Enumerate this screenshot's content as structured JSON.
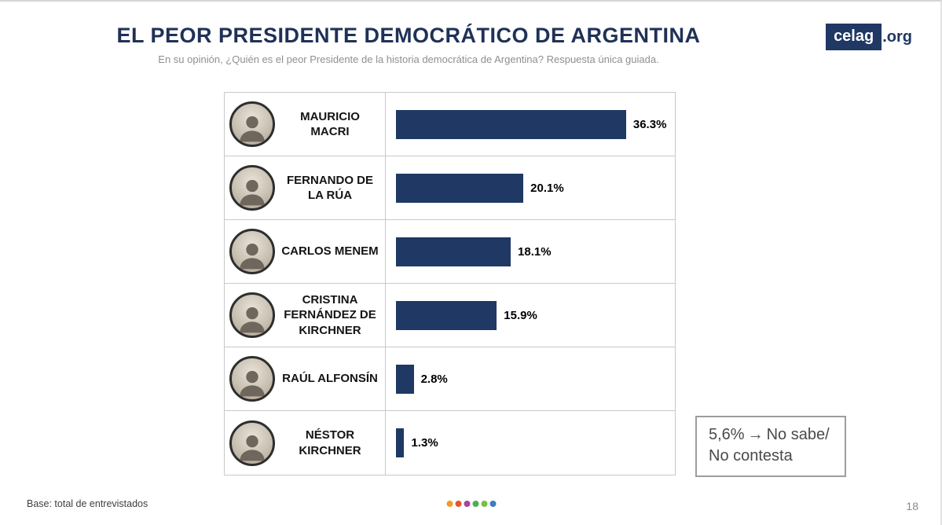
{
  "header": {
    "title": "EL PEOR PRESIDENTE DEMOCRÁTICO DE ARGENTINA",
    "subtitle": "En su opinión, ¿Quién es el peor Presidente de la historia democrática de Argentina? Respuesta única guiada.",
    "logo_brand": "celag",
    "logo_suffix": ".org"
  },
  "chart_data": {
    "type": "bar",
    "orientation": "horizontal",
    "title": "EL PEOR PRESIDENTE DEMOCRÁTICO DE ARGENTINA",
    "subtitle": "En su opinión, ¿Quién es el peor Presidente de la historia democrática de Argentina? Respuesta única guiada.",
    "categories": [
      "MAURICIO MACRI",
      "FERNANDO DE LA RÚA",
      "CARLOS MENEM",
      "CRISTINA FERNÁNDEZ DE KIRCHNER",
      "RAÚL ALFONSÍN",
      "NÉSTOR KIRCHNER"
    ],
    "values": [
      36.3,
      20.1,
      18.1,
      15.9,
      2.8,
      1.3
    ],
    "value_labels": [
      "36.3%",
      "20.1%",
      "18.1%",
      "15.9%",
      "2.8%",
      "1.3%"
    ],
    "bar_color": "#1f3864",
    "xlim": [
      0,
      44
    ],
    "grid": "table-rows",
    "legend": "none",
    "note": "5,6% → No sabe/ No contesta",
    "base": "Base: total de entrevistados"
  },
  "note_box": {
    "value": "5,6%",
    "arrow": "→",
    "label": "No sabe/ No contesta"
  },
  "footer": {
    "base_note": "Base: total de entrevistados",
    "page_number": "18",
    "dot_colors": [
      "#f49b20",
      "#e4572e",
      "#a6459c",
      "#4caf50",
      "#77c043",
      "#3e7bc4"
    ]
  }
}
